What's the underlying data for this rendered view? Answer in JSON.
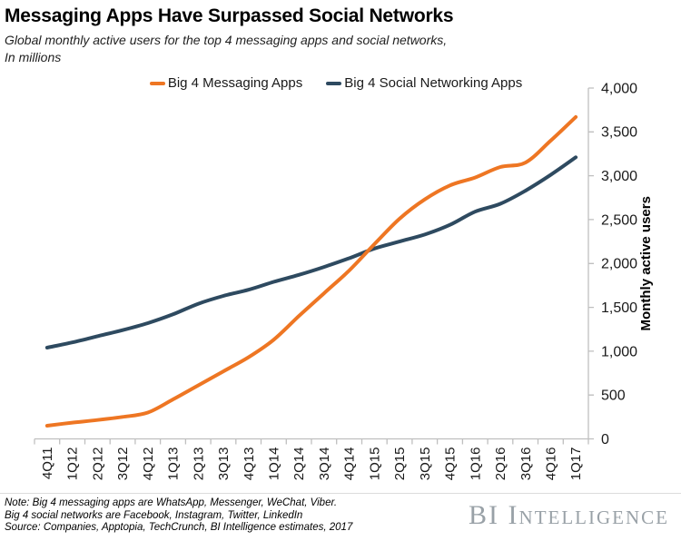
{
  "header": {
    "subtitle_line1": "Global monthly active users for the top 4 messaging apps and social networks,",
    "subtitle_line2": "In millions"
  },
  "chart_data": {
    "type": "line",
    "title": "Messaging Apps Have Surpassed Social Networks",
    "subtitle": "Global monthly active users for the top 4 messaging apps and social networks, In millions",
    "categories": [
      "4Q11",
      "1Q12",
      "2Q12",
      "3Q12",
      "4Q12",
      "1Q13",
      "2Q13",
      "3Q13",
      "4Q13",
      "1Q14",
      "2Q14",
      "3Q14",
      "4Q14",
      "1Q15",
      "2Q15",
      "3Q15",
      "4Q15",
      "1Q16",
      "2Q16",
      "3Q16",
      "4Q16",
      "1Q17"
    ],
    "series": [
      {
        "name": "Big 4 Messaging Apps",
        "color": "#EE7623",
        "values": [
          150,
          185,
          215,
          250,
          300,
          450,
          610,
          770,
          930,
          1130,
          1400,
          1660,
          1920,
          2220,
          2510,
          2730,
          2890,
          2980,
          3100,
          3150,
          3400,
          3670
        ]
      },
      {
        "name": "Big 4 Social Networking Apps",
        "color": "#2E4A60",
        "values": [
          1040,
          1100,
          1170,
          1240,
          1320,
          1420,
          1540,
          1630,
          1700,
          1790,
          1870,
          1960,
          2060,
          2170,
          2250,
          2330,
          2440,
          2590,
          2680,
          2830,
          3010,
          3210
        ]
      }
    ],
    "xlabel": "",
    "ylabel": "Monthly active users",
    "ylim": [
      0,
      4000
    ],
    "yticks": [
      0,
      500,
      1000,
      1500,
      2000,
      2500,
      3000,
      3500,
      4000
    ],
    "ytick_labels": [
      "0",
      "500",
      "1,000",
      "1,500",
      "2,000",
      "2,500",
      "3,000",
      "3,500",
      "4,000"
    ],
    "grid": false,
    "legend_position": "top",
    "y_axis_side": "right"
  },
  "footer": {
    "note_line1": "Note: Big 4 messaging apps are WhatsApp, Messenger, WeChat, Viber.",
    "note_line2": "Big 4 social networks are Facebook, Instagram, Twitter, LinkedIn",
    "source_line": "Source: Companies,  Apptopia, TechCrunch,  BI Intelligence estimates, 2017"
  },
  "branding": {
    "logo_text": "BI Intelligence",
    "logo_color": "#99a1a7"
  }
}
